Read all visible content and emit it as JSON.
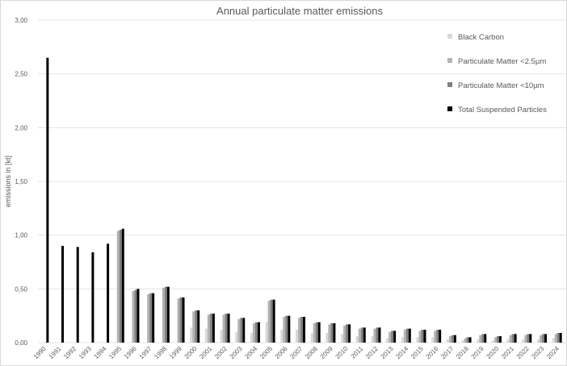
{
  "chart_data": {
    "type": "bar",
    "title": "Annual particulate matter emissions",
    "ylabel": "emissions in [kt]",
    "xlabel": "",
    "ylim": [
      0,
      3
    ],
    "yticks": [
      "0,00",
      "0,50",
      "1,00",
      "1,50",
      "2,00",
      "2,50",
      "3,00"
    ],
    "grid": true,
    "legend_position": "right-top",
    "categories": [
      "1990",
      "1991",
      "1992",
      "1993",
      "1994",
      "1995",
      "1996",
      "1997",
      "1998",
      "1999",
      "2000",
      "2001",
      "2002",
      "2003",
      "2004",
      "2005",
      "2006",
      "2007",
      "2008",
      "2009",
      "2010",
      "2011",
      "2012",
      "2013",
      "2014",
      "2015",
      "2016",
      "2017",
      "2018",
      "2019",
      "2020",
      "2021",
      "2022",
      "2023",
      "2024"
    ],
    "series": [
      {
        "name": "Black Carbon",
        "color": "#d9d9d9",
        "values": [
          null,
          null,
          null,
          null,
          null,
          null,
          null,
          null,
          null,
          null,
          0.14,
          0.13,
          0.12,
          0.1,
          0.09,
          0.19,
          0.12,
          0.12,
          0.09,
          0.09,
          0.08,
          0.06,
          0.06,
          0.04,
          0.05,
          0.05,
          0.05,
          0.03,
          0.02,
          0.03,
          0.02,
          0.03,
          0.03,
          0.03,
          0.04
        ]
      },
      {
        "name": "Particulate Matter <2.5µm",
        "color": "#b3b3b3",
        "values": [
          null,
          null,
          null,
          null,
          null,
          1.04,
          0.48,
          0.45,
          0.51,
          0.41,
          0.29,
          0.26,
          0.26,
          0.22,
          0.18,
          0.39,
          0.24,
          0.23,
          0.18,
          0.17,
          0.16,
          0.13,
          0.13,
          0.1,
          0.12,
          0.11,
          0.11,
          0.06,
          0.04,
          0.07,
          0.05,
          0.07,
          0.07,
          0.07,
          0.08
        ]
      },
      {
        "name": "Particulate Matter <10µm",
        "color": "#808080",
        "values": [
          null,
          null,
          null,
          null,
          null,
          1.05,
          0.49,
          0.46,
          0.52,
          0.42,
          0.3,
          0.27,
          0.27,
          0.23,
          0.19,
          0.4,
          0.25,
          0.24,
          0.19,
          0.18,
          0.17,
          0.14,
          0.14,
          0.11,
          0.13,
          0.12,
          0.12,
          0.07,
          0.05,
          0.08,
          0.06,
          0.08,
          0.08,
          0.08,
          0.09
        ]
      },
      {
        "name": "Total Suspended Particles",
        "color": "#000000",
        "values": [
          2.65,
          0.9,
          0.89,
          0.84,
          0.92,
          1.06,
          0.5,
          0.46,
          0.52,
          0.42,
          0.3,
          0.27,
          0.27,
          0.23,
          0.19,
          0.4,
          0.25,
          0.24,
          0.19,
          0.18,
          0.17,
          0.14,
          0.14,
          0.11,
          0.13,
          0.12,
          0.12,
          0.07,
          0.05,
          0.08,
          0.06,
          0.08,
          0.08,
          0.08,
          0.09
        ]
      }
    ]
  }
}
